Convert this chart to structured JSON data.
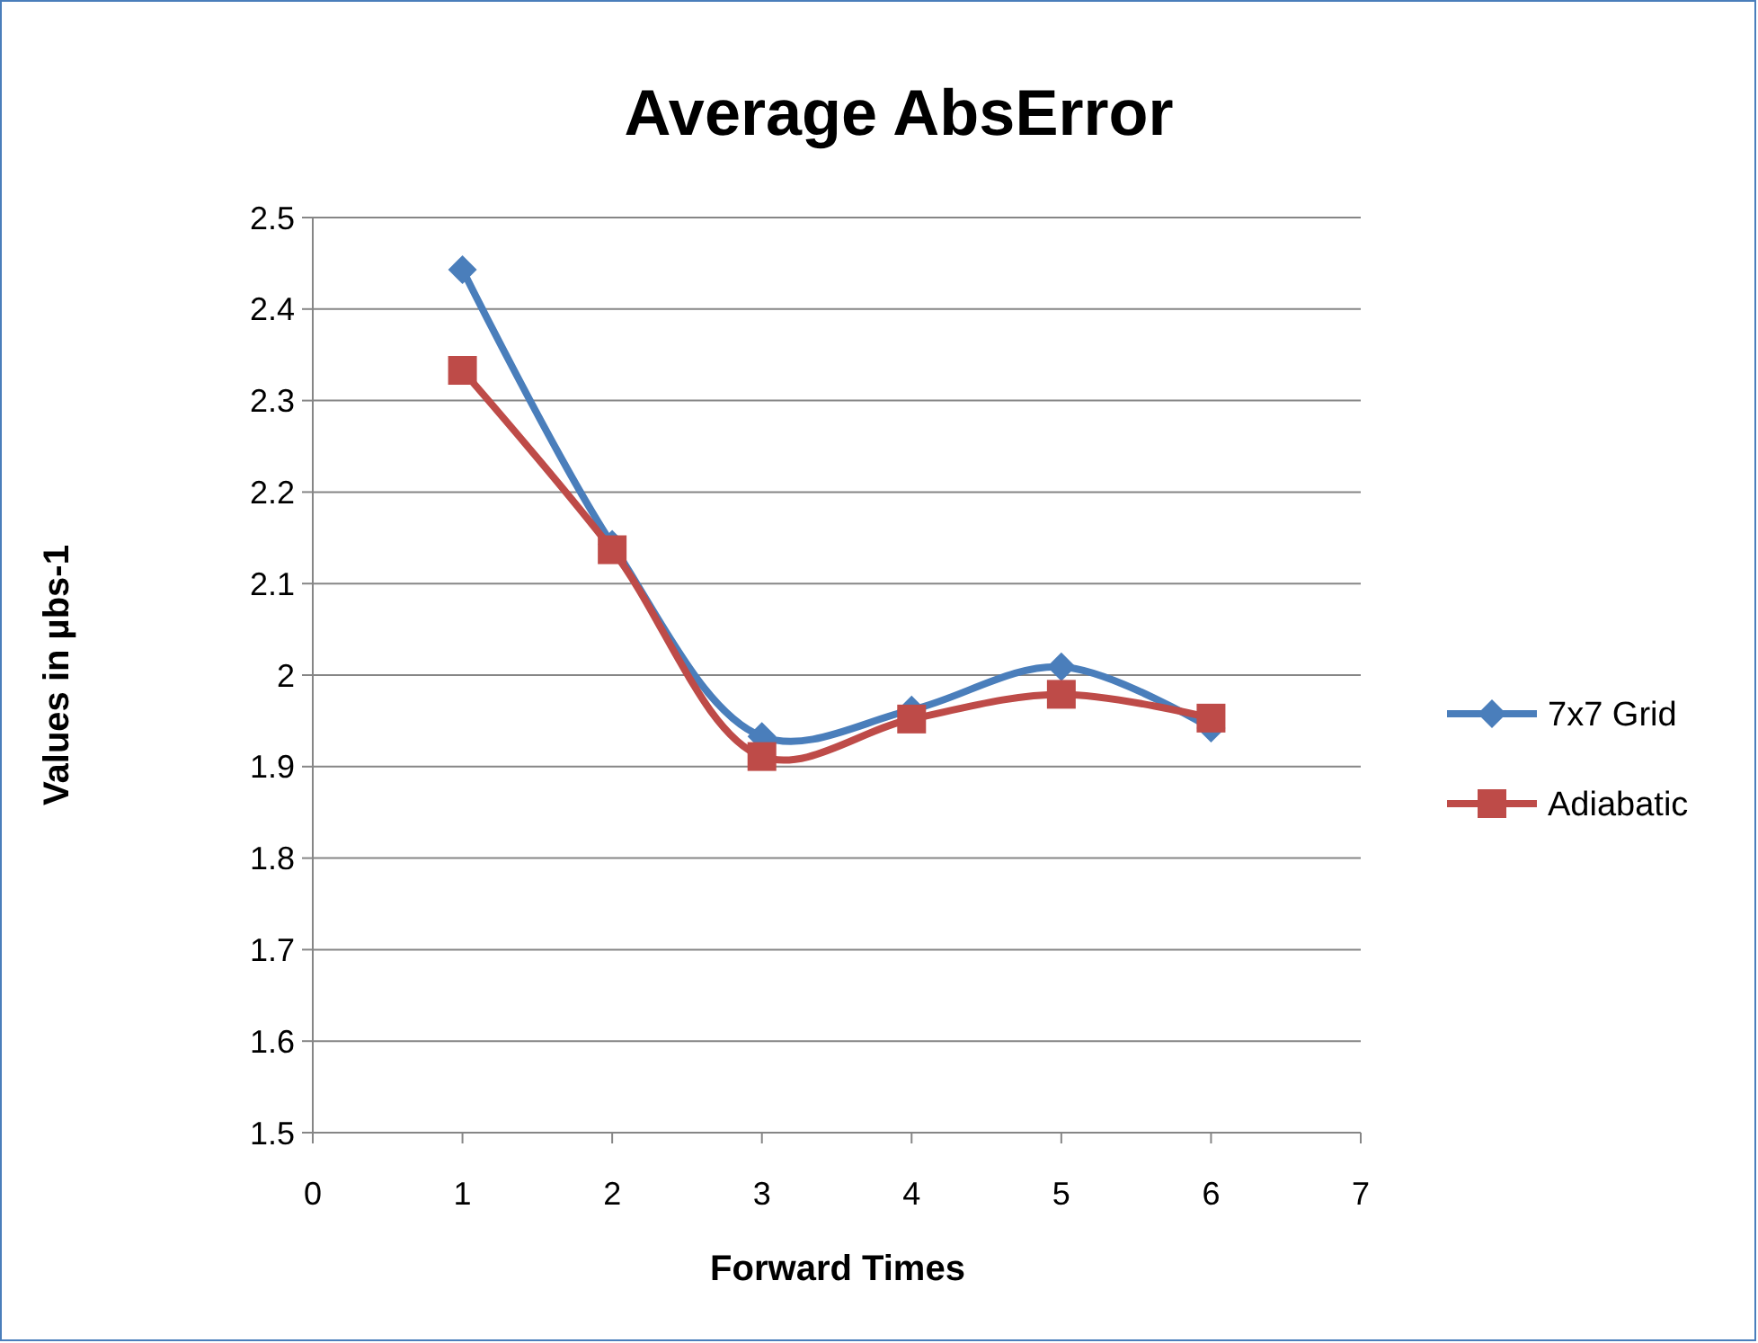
{
  "chart_data": {
    "type": "line",
    "title": "Average AbsError",
    "xlabel": "Forward Times",
    "ylabel": "Values in µbs-1",
    "x": [
      1,
      2,
      3,
      4,
      5,
      6
    ],
    "xlim": [
      0,
      7
    ],
    "xticks": [
      0,
      1,
      2,
      3,
      4,
      5,
      6,
      7
    ],
    "ylim": [
      1.5,
      2.5
    ],
    "yticks": [
      1.5,
      1.6,
      1.7,
      1.8,
      1.9,
      2,
      2.1,
      2.2,
      2.3,
      2.4,
      2.5
    ],
    "grid": "y",
    "legend": "right",
    "line_style": "solid",
    "series": [
      {
        "name": "7x7 Grid",
        "color": "#4a7ebb",
        "marker": "diamond",
        "values": [
          2.443,
          2.143,
          1.933,
          1.962,
          2.009,
          1.942
        ]
      },
      {
        "name": "Adiabatic",
        "color": "#be4b48",
        "marker": "square",
        "values": [
          2.333,
          2.137,
          1.911,
          1.952,
          1.979,
          1.953
        ]
      }
    ]
  }
}
